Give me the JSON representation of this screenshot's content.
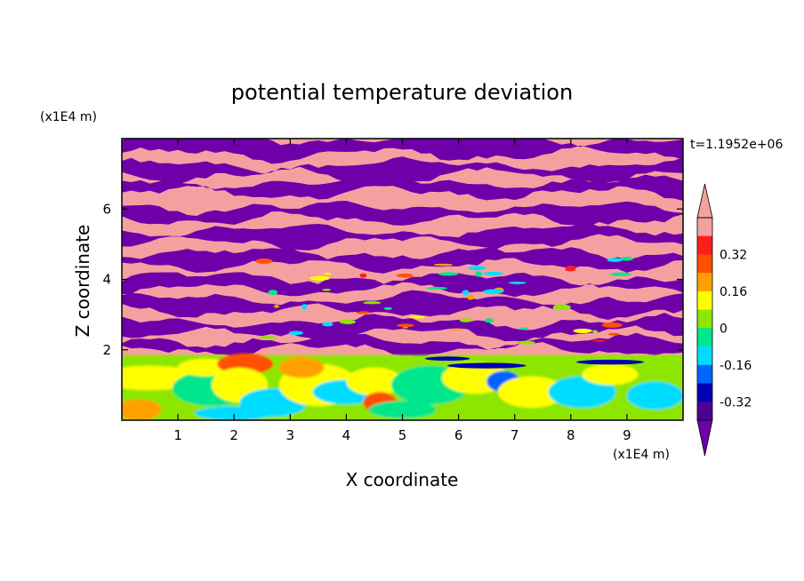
{
  "chart_data": {
    "type": "heatmap",
    "title": "potential temperature deviation",
    "xlabel": "X coordinate",
    "ylabel": "Z coordinate",
    "x_unit_label": "(x1E4 m)",
    "y_unit_label": "(x1E4 m)",
    "time_label": "t=1.1952e+06",
    "xlim": [
      0,
      10
    ],
    "ylim": [
      0,
      8
    ],
    "x_ticks": [
      "1",
      "2",
      "3",
      "4",
      "5",
      "6",
      "7",
      "8",
      "9"
    ],
    "y_ticks": [
      "2",
      "4",
      "6"
    ],
    "colorbar": {
      "levels": [
        -0.4,
        -0.32,
        -0.24,
        -0.16,
        -0.08,
        0,
        0.08,
        0.16,
        0.24,
        0.32,
        0.4
      ],
      "colors": [
        "#4b0096",
        "#0000b4",
        "#0064ff",
        "#00dcff",
        "#00e68c",
        "#8ce600",
        "#ffff00",
        "#ffa000",
        "#ff5000",
        "#ff1e1e",
        "#f5a0a0"
      ],
      "under_color": "#6e00aa",
      "over_color": "#f5a0a0",
      "tick_labels": [
        "0.32",
        "0.16",
        "0",
        "-0.16",
        "-0.32"
      ]
    },
    "regions": {
      "upper": {
        "z_range": [
          2,
          8
        ],
        "dominant_values": [
          "<-0.4",
          ">0.4"
        ]
      },
      "lower": {
        "z_range": [
          0,
          2
        ],
        "dominant_values": [
          -0.08,
          0,
          0.08,
          0.16,
          -0.16
        ]
      }
    }
  }
}
